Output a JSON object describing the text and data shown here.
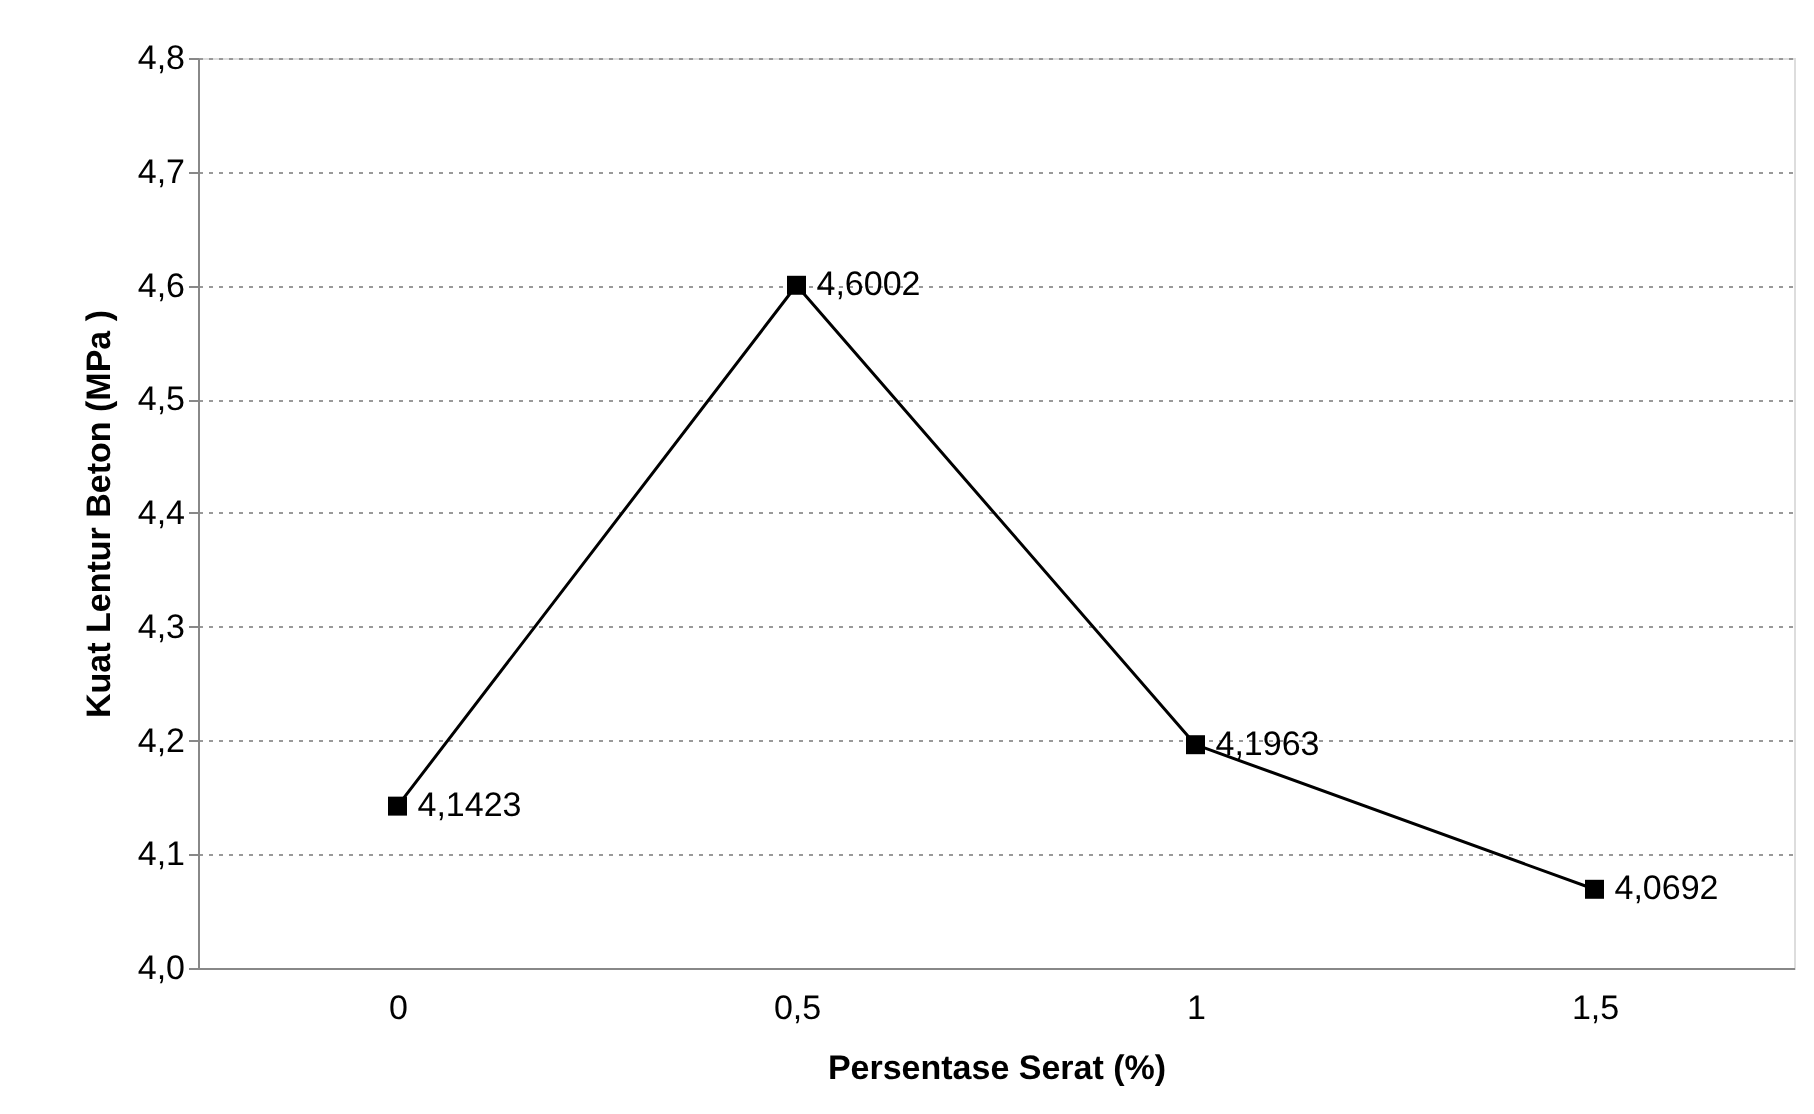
{
  "chart_data": {
    "type": "line",
    "xlabel": "Persentase Serat (%)",
    "ylabel": "Kuat Lentur Beton (MPa )",
    "categories": [
      "0",
      "0,5",
      "1",
      "1,5"
    ],
    "series": [
      {
        "color": "#000000",
        "values": [
          4.1423,
          4.6002,
          4.1963,
          4.0692
        ],
        "value_labels": [
          "4,1423",
          "4,6002",
          "4,1963",
          "4,0692"
        ]
      }
    ],
    "ylim": [
      4.0,
      4.8
    ],
    "yticks": [
      {
        "value": 4.0,
        "label": "4,0"
      },
      {
        "value": 4.1,
        "label": "4,1"
      },
      {
        "value": 4.2,
        "label": "4,2"
      },
      {
        "value": 4.3,
        "label": "4,3"
      },
      {
        "value": 4.4,
        "label": "4,4"
      },
      {
        "value": 4.5,
        "label": "4,5"
      },
      {
        "value": 4.6,
        "label": "4,6"
      },
      {
        "value": 4.7,
        "label": "4,7"
      },
      {
        "value": 4.8,
        "label": "4,8"
      }
    ],
    "grid": "y",
    "marker": "square",
    "line_style": "solid"
  }
}
